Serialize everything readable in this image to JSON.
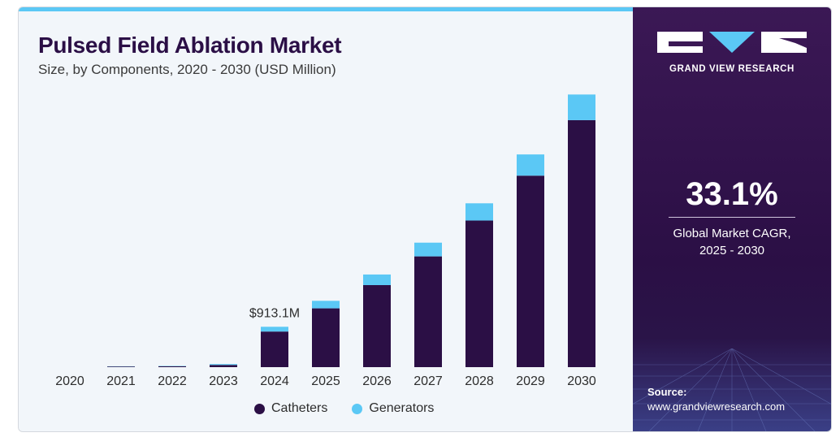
{
  "header": {
    "title": "Pulsed Field Ablation Market",
    "subtitle": "Size, by Components, 2020 - 2030 (USD Million)"
  },
  "chart_data": {
    "type": "bar",
    "stacked": true,
    "categories": [
      "2020",
      "2021",
      "2022",
      "2023",
      "2024",
      "2025",
      "2026",
      "2027",
      "2028",
      "2029",
      "2030"
    ],
    "series": [
      {
        "name": "Catheters",
        "color": "#2b0f45",
        "values": [
          0,
          15,
          20,
          50,
          805,
          1330,
          1855,
          2505,
          3315,
          4330,
          5585
        ]
      },
      {
        "name": "Generators",
        "color": "#5bc8f5",
        "values": [
          0,
          5,
          8,
          20,
          108,
          170,
          240,
          310,
          390,
          480,
          580
        ]
      }
    ],
    "annotations": [
      {
        "category": "2024",
        "text": "$913.1M"
      }
    ],
    "ylim": [
      0,
      6300
    ],
    "grid": false,
    "legend": "bottom"
  },
  "side_panel": {
    "brand": "GRAND VIEW RESEARCH",
    "cagr_value": "33.1%",
    "cagr_label_line1": "Global Market CAGR,",
    "cagr_label_line2": "2025 - 2030",
    "source_label": "Source:",
    "source_url": "www.grandviewresearch.com"
  }
}
